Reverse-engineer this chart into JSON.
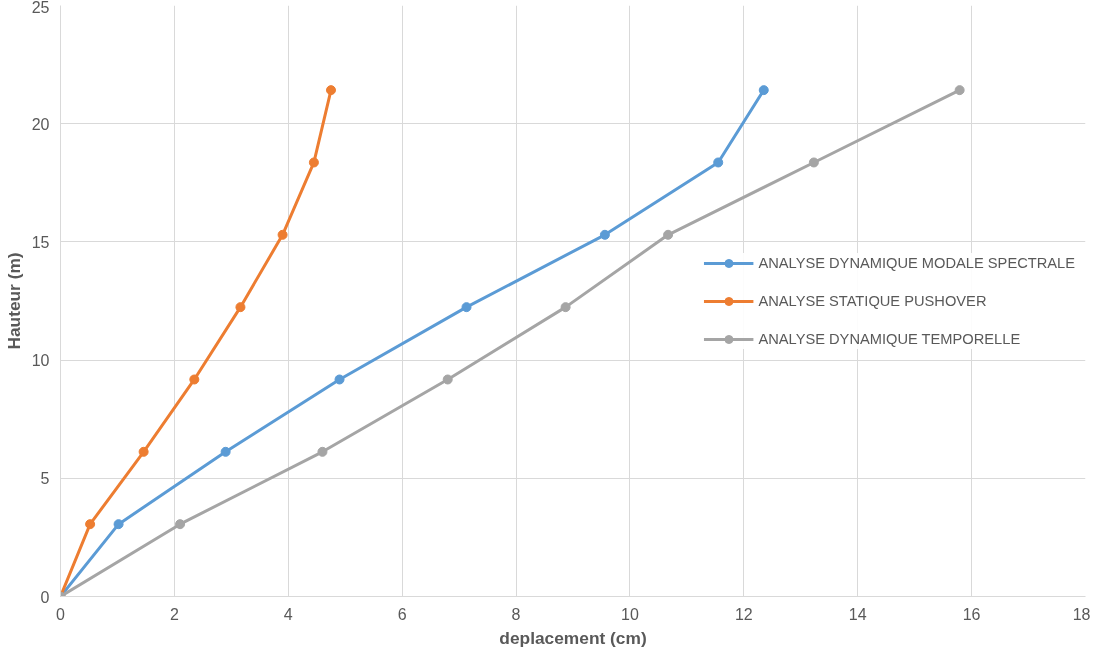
{
  "chart_data": {
    "type": "line",
    "xlabel": "deplacement (cm)",
    "ylabel": "Hauteur (m)",
    "xlim": [
      0,
      18
    ],
    "xticks": [
      0,
      2,
      4,
      6,
      8,
      10,
      12,
      14,
      16,
      18
    ],
    "ylim": [
      0,
      25
    ],
    "yticks": [
      0,
      5,
      10,
      15,
      20,
      25
    ],
    "grid": true,
    "legend": "right",
    "marker": "circle",
    "line_style": "solid",
    "series": [
      {
        "name": "ANALYSE DYNAMIQUE MODALE SPECTRALE",
        "color": "#5b9bd5",
        "x": [
          0,
          1.02,
          2.9,
          4.9,
          7.13,
          9.56,
          11.55,
          12.35
        ],
        "values": [
          0,
          3.06,
          6.12,
          9.18,
          12.24,
          15.3,
          18.36,
          21.42
        ]
      },
      {
        "name": "ANALYSE STATIQUE PUSHOVER",
        "color": "#ed7d31",
        "x": [
          0,
          0.52,
          1.46,
          2.35,
          3.16,
          3.9,
          4.45,
          4.75
        ],
        "values": [
          0,
          3.06,
          6.12,
          9.18,
          12.24,
          15.3,
          18.36,
          21.42
        ]
      },
      {
        "name": "ANALYSE DYNAMIQUE TEMPORELLE",
        "color": "#a5a5a5",
        "x": [
          0,
          2.1,
          4.6,
          6.8,
          8.87,
          10.67,
          13.23,
          15.79
        ],
        "values": [
          0,
          3.06,
          6.12,
          9.18,
          12.24,
          15.3,
          18.36,
          21.42
        ]
      }
    ]
  }
}
